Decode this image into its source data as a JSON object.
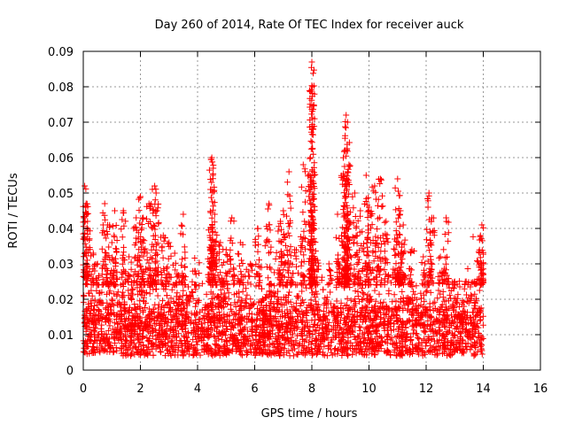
{
  "chart_data": {
    "type": "scatter",
    "title": "Day 260 of 2014, Rate Of TEC Index for receiver auck",
    "xlabel": "GPS time / hours",
    "ylabel": "ROTI / TECUs",
    "xlim": [
      0,
      16
    ],
    "ylim": [
      0,
      0.09
    ],
    "xticks": [
      0,
      2,
      4,
      6,
      8,
      10,
      12,
      14,
      16
    ],
    "xtick_labels": [
      "0",
      "2",
      "4",
      "6",
      "8",
      "10",
      "12",
      "14",
      "16"
    ],
    "yticks": [
      0,
      0.01,
      0.02,
      0.03,
      0.04,
      0.05,
      0.06,
      0.07,
      0.08,
      0.09
    ],
    "ytick_labels": [
      "0",
      "0.01",
      "0.02",
      "0.03",
      "0.04",
      "0.05",
      "0.06",
      "0.07",
      "0.08",
      "0.09"
    ],
    "grid": true,
    "marker": "+",
    "color": "#ff0000",
    "series": [
      {
        "x_range": [
          0,
          14
        ],
        "band_min": 0.004,
        "band_max": 0.024,
        "band_typical": 0.012,
        "spikes": [
          {
            "x": 0.05,
            "y": 0.052
          },
          {
            "x": 0.1,
            "y": 0.047
          },
          {
            "x": 0.15,
            "y": 0.042
          },
          {
            "x": 0.35,
            "y": 0.033
          },
          {
            "x": 0.5,
            "y": 0.03
          },
          {
            "x": 0.75,
            "y": 0.047
          },
          {
            "x": 0.85,
            "y": 0.041
          },
          {
            "x": 1.0,
            "y": 0.036
          },
          {
            "x": 1.1,
            "y": 0.045
          },
          {
            "x": 1.4,
            "y": 0.045
          },
          {
            "x": 1.6,
            "y": 0.032
          },
          {
            "x": 1.85,
            "y": 0.043
          },
          {
            "x": 2.0,
            "y": 0.049
          },
          {
            "x": 2.1,
            "y": 0.043
          },
          {
            "x": 2.3,
            "y": 0.047
          },
          {
            "x": 2.5,
            "y": 0.052
          },
          {
            "x": 2.55,
            "y": 0.05
          },
          {
            "x": 2.8,
            "y": 0.038
          },
          {
            "x": 3.0,
            "y": 0.036
          },
          {
            "x": 3.2,
            "y": 0.033
          },
          {
            "x": 3.5,
            "y": 0.044
          },
          {
            "x": 3.9,
            "y": 0.028
          },
          {
            "x": 4.45,
            "y": 0.051
          },
          {
            "x": 4.5,
            "y": 0.06
          },
          {
            "x": 4.55,
            "y": 0.057
          },
          {
            "x": 4.6,
            "y": 0.044
          },
          {
            "x": 4.8,
            "y": 0.036
          },
          {
            "x": 5.0,
            "y": 0.034
          },
          {
            "x": 5.2,
            "y": 0.043
          },
          {
            "x": 5.5,
            "y": 0.036
          },
          {
            "x": 5.85,
            "y": 0.03
          },
          {
            "x": 6.1,
            "y": 0.04
          },
          {
            "x": 6.5,
            "y": 0.047
          },
          {
            "x": 6.9,
            "y": 0.042
          },
          {
            "x": 7.0,
            "y": 0.045
          },
          {
            "x": 7.2,
            "y": 0.056
          },
          {
            "x": 7.4,
            "y": 0.034
          },
          {
            "x": 7.7,
            "y": 0.058
          },
          {
            "x": 7.95,
            "y": 0.06
          },
          {
            "x": 8.0,
            "y": 0.087
          },
          {
            "x": 8.02,
            "y": 0.08
          },
          {
            "x": 8.05,
            "y": 0.068
          },
          {
            "x": 8.2,
            "y": 0.031
          },
          {
            "x": 8.6,
            "y": 0.03
          },
          {
            "x": 8.9,
            "y": 0.044
          },
          {
            "x": 9.1,
            "y": 0.055
          },
          {
            "x": 9.15,
            "y": 0.062
          },
          {
            "x": 9.2,
            "y": 0.072
          },
          {
            "x": 9.25,
            "y": 0.07
          },
          {
            "x": 9.3,
            "y": 0.058
          },
          {
            "x": 9.5,
            "y": 0.05
          },
          {
            "x": 9.7,
            "y": 0.045
          },
          {
            "x": 9.9,
            "y": 0.055
          },
          {
            "x": 10.0,
            "y": 0.046
          },
          {
            "x": 10.2,
            "y": 0.052
          },
          {
            "x": 10.4,
            "y": 0.054
          },
          {
            "x": 10.6,
            "y": 0.042
          },
          {
            "x": 10.9,
            "y": 0.037
          },
          {
            "x": 11.0,
            "y": 0.054
          },
          {
            "x": 11.1,
            "y": 0.045
          },
          {
            "x": 11.2,
            "y": 0.041
          },
          {
            "x": 11.5,
            "y": 0.034
          },
          {
            "x": 11.9,
            "y": 0.032
          },
          {
            "x": 12.1,
            "y": 0.05
          },
          {
            "x": 12.2,
            "y": 0.043
          },
          {
            "x": 12.5,
            "y": 0.032
          },
          {
            "x": 12.7,
            "y": 0.043
          },
          {
            "x": 13.0,
            "y": 0.025
          },
          {
            "x": 13.4,
            "y": 0.025
          },
          {
            "x": 13.7,
            "y": 0.025
          },
          {
            "x": 13.9,
            "y": 0.038
          },
          {
            "x": 13.95,
            "y": 0.041
          },
          {
            "x": 14.0,
            "y": 0.03
          }
        ]
      }
    ]
  }
}
